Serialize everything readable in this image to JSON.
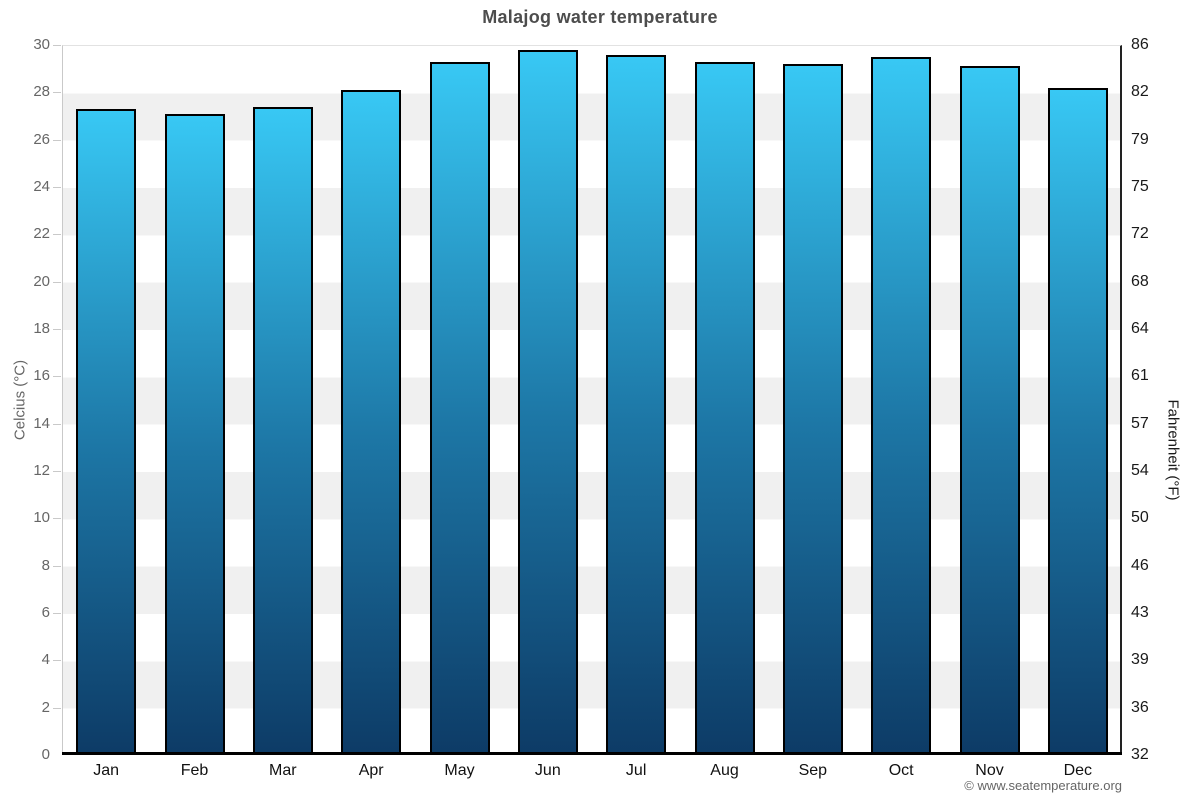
{
  "header": {
    "title": "Malajog water temperature"
  },
  "footer": {
    "attribution": "© www.seatemperature.org"
  },
  "chart_data": {
    "type": "bar",
    "title": "Malajog water temperature",
    "categories": [
      "Jan",
      "Feb",
      "Mar",
      "Apr",
      "May",
      "Jun",
      "Jul",
      "Aug",
      "Sep",
      "Oct",
      "Nov",
      "Dec"
    ],
    "series": [
      {
        "name": "Water temperature (°C)",
        "values": [
          27.3,
          27.1,
          27.4,
          28.1,
          29.3,
          29.8,
          29.6,
          29.3,
          29.2,
          29.5,
          29.1,
          28.2
        ]
      }
    ],
    "xlabel": "",
    "ylabel_left": "Celcius (°C)",
    "ylabel_right": "Fahrenheit (°F)",
    "y_left": {
      "min": 0,
      "max": 30,
      "ticks": [
        0,
        2,
        4,
        6,
        8,
        10,
        12,
        14,
        16,
        18,
        20,
        22,
        24,
        26,
        28,
        30
      ]
    },
    "y_right": {
      "tick_labels": [
        "32",
        "36",
        "39",
        "43",
        "46",
        "50",
        "54",
        "57",
        "61",
        "64",
        "68",
        "72",
        "75",
        "79",
        "82",
        "86"
      ]
    },
    "legend": "none",
    "grid": "alternating horizontal bands every 2°C",
    "appearance": {
      "bar_gradient_top": "#38c8f4",
      "bar_gradient_mid": "#1d77a6",
      "bar_gradient_bottom": "#0d3b66",
      "bar_border": "#000000",
      "band_gray": "#f0f0f0",
      "band_white": "#ffffff",
      "title_color": "#4d4d4d",
      "left_axis_color": "#666666",
      "right_axis_color": "#1a1a1a"
    }
  }
}
